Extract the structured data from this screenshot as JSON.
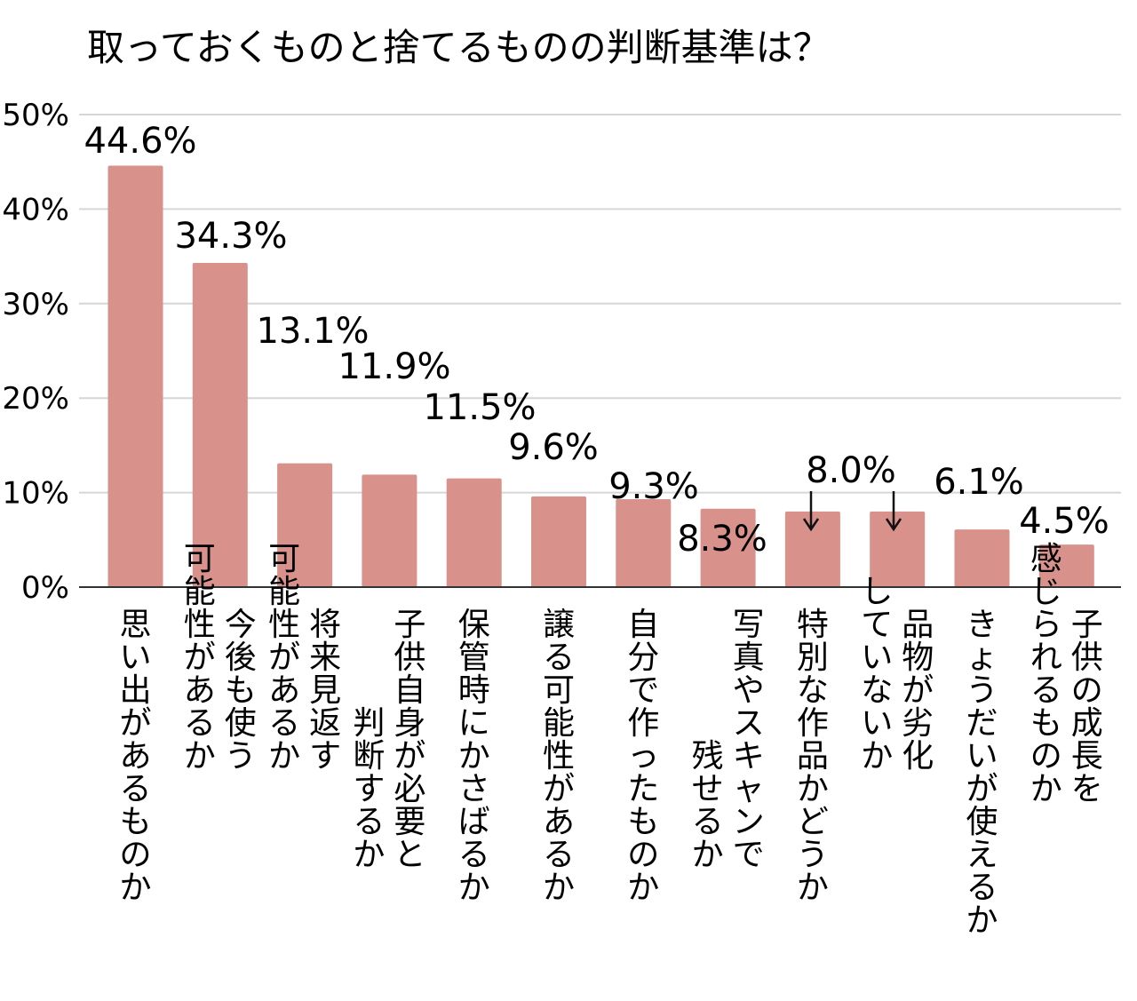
{
  "chart_data": {
    "type": "bar",
    "title": "取っておくものと捨てるものの判断基準は？",
    "xlabel": "",
    "ylabel": "",
    "ylim": [
      0,
      50
    ],
    "yticks": [
      "0%",
      "10%",
      "20%",
      "30%",
      "40%",
      "50%"
    ],
    "grid": true,
    "bar_color": "#d9918b",
    "categories": [
      "思い出があるものか",
      "今後も使う可能性があるか",
      "将来見返す可能性があるか",
      "子供自身が必要と判断するか",
      "保管時にかさばるか",
      "譲る可能性があるか",
      "自分で作ったものか",
      "写真やスキャンで残せるか",
      "特別な作品かどうか",
      "品物が劣化していないか",
      "きょうだいが使えるか",
      "子供の成長を感じられるものか"
    ],
    "category_lines": [
      [
        "思い出があるものか"
      ],
      [
        "今後も使う",
        "可能性があるか"
      ],
      [
        "将来見返す",
        "可能性があるか"
      ],
      [
        "子供自身が必要と",
        "判断するか"
      ],
      [
        "保管時にかさばるか"
      ],
      [
        "譲る可能性があるか"
      ],
      [
        "自分で作ったものか"
      ],
      [
        "写真やスキャンで",
        "残せるか"
      ],
      [
        "特別な作品かどうか"
      ],
      [
        "品物が劣化",
        "していないか"
      ],
      [
        "きょうだいが使えるか"
      ],
      [
        "子供の成長を",
        "感じられるものか"
      ]
    ],
    "values": [
      44.6,
      34.3,
      13.1,
      11.9,
      11.5,
      9.6,
      9.3,
      8.3,
      8.0,
      8.0,
      6.1,
      4.5
    ],
    "data_labels": [
      "44.6%",
      "34.3%",
      "13.1%",
      "11.9%",
      "11.5%",
      "9.6%",
      "9.3%",
      "8.3%",
      "8.0%",
      "",
      "6.1%",
      "4.5%"
    ]
  }
}
